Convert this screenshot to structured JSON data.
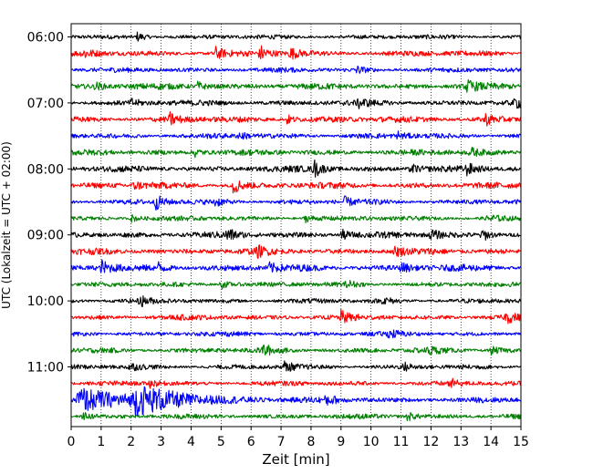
{
  "chart_data": {
    "type": "line",
    "title": "",
    "xlabel": "Zeit  [min]",
    "ylabel": "UTC (Lokalzeit = UTC + 02:00)",
    "xlim": [
      0,
      15
    ],
    "x_ticks": [
      "0",
      "1",
      "2",
      "3",
      "4",
      "5",
      "6",
      "7",
      "8",
      "9",
      "10",
      "11",
      "12",
      "13",
      "14",
      "15"
    ],
    "y_tick_labels": [
      "06:00",
      "07:00",
      "08:00",
      "09:00",
      "10:00",
      "11:00"
    ],
    "grid": "vertical dotted",
    "trace_interval_minutes": 15,
    "traces": [
      {
        "start": "06:00",
        "color": "#000000",
        "amp": 2.0,
        "events": [
          {
            "t": 2.2,
            "a": 5
          }
        ]
      },
      {
        "start": "06:15",
        "color": "#ff0000",
        "amp": 2.6,
        "events": [
          {
            "t": 0.4,
            "a": 5
          },
          {
            "t": 4.8,
            "a": 7
          },
          {
            "t": 6.3,
            "a": 8
          },
          {
            "t": 7.3,
            "a": 6
          }
        ]
      },
      {
        "start": "06:30",
        "color": "#0000ff",
        "amp": 2.2,
        "events": [
          {
            "t": 9.5,
            "a": 4
          }
        ]
      },
      {
        "start": "06:45",
        "color": "#008000",
        "amp": 2.8,
        "events": [
          {
            "t": 0.8,
            "a": 4
          },
          {
            "t": 4.2,
            "a": 5
          },
          {
            "t": 13.2,
            "a": 6
          }
        ]
      },
      {
        "start": "07:00",
        "color": "#000000",
        "amp": 2.6,
        "events": [
          {
            "t": 2.0,
            "a": 4
          },
          {
            "t": 9.6,
            "a": 4
          },
          {
            "t": 14.8,
            "a": 5
          }
        ]
      },
      {
        "start": "07:15",
        "color": "#ff0000",
        "amp": 2.8,
        "events": [
          {
            "t": 3.3,
            "a": 6
          },
          {
            "t": 7.2,
            "a": 5
          },
          {
            "t": 13.8,
            "a": 6
          }
        ]
      },
      {
        "start": "07:30",
        "color": "#0000ff",
        "amp": 2.4,
        "events": [
          {
            "t": 5.6,
            "a": 4
          },
          {
            "t": 10.9,
            "a": 4
          }
        ]
      },
      {
        "start": "07:45",
        "color": "#008000",
        "amp": 2.6,
        "events": [
          {
            "t": 4.1,
            "a": 5
          },
          {
            "t": 13.3,
            "a": 5
          }
        ]
      },
      {
        "start": "08:00",
        "color": "#000000",
        "amp": 2.8,
        "events": [
          {
            "t": 8.1,
            "a": 9
          },
          {
            "t": 11.3,
            "a": 6
          },
          {
            "t": 13.2,
            "a": 5
          }
        ]
      },
      {
        "start": "08:15",
        "color": "#ff0000",
        "amp": 2.8,
        "events": [
          {
            "t": 5.4,
            "a": 9
          },
          {
            "t": 2.1,
            "a": 4
          }
        ]
      },
      {
        "start": "08:30",
        "color": "#0000ff",
        "amp": 2.4,
        "events": [
          {
            "t": 2.8,
            "a": 8
          },
          {
            "t": 9.1,
            "a": 5
          },
          {
            "t": 4.8,
            "a": 4
          }
        ]
      },
      {
        "start": "08:45",
        "color": "#008000",
        "amp": 2.2,
        "events": [
          {
            "t": 2.0,
            "a": 4
          },
          {
            "t": 7.8,
            "a": 4
          },
          {
            "t": 13.9,
            "a": 5
          }
        ]
      },
      {
        "start": "09:00",
        "color": "#000000",
        "amp": 2.8,
        "events": [
          {
            "t": 5.2,
            "a": 6
          },
          {
            "t": 9.0,
            "a": 6
          },
          {
            "t": 12.0,
            "a": 6
          },
          {
            "t": 13.7,
            "a": 7
          }
        ]
      },
      {
        "start": "09:15",
        "color": "#ff0000",
        "amp": 2.8,
        "events": [
          {
            "t": 6.2,
            "a": 5
          },
          {
            "t": 10.8,
            "a": 5
          }
        ]
      },
      {
        "start": "09:30",
        "color": "#0000ff",
        "amp": 3.0,
        "events": [
          {
            "t": 1.0,
            "a": 8
          },
          {
            "t": 2.9,
            "a": 6
          },
          {
            "t": 6.6,
            "a": 5
          },
          {
            "t": 11.0,
            "a": 5
          }
        ]
      },
      {
        "start": "09:45",
        "color": "#008000",
        "amp": 2.2,
        "events": [
          {
            "t": 5.0,
            "a": 5
          },
          {
            "t": 9.2,
            "a": 4
          }
        ]
      },
      {
        "start": "10:00",
        "color": "#000000",
        "amp": 2.2,
        "events": [
          {
            "t": 2.3,
            "a": 5
          },
          {
            "t": 10.4,
            "a": 4
          }
        ]
      },
      {
        "start": "10:15",
        "color": "#ff0000",
        "amp": 2.4,
        "events": [
          {
            "t": 9.0,
            "a": 6
          },
          {
            "t": 14.5,
            "a": 6
          }
        ]
      },
      {
        "start": "10:30",
        "color": "#0000ff",
        "amp": 2.2,
        "events": [
          {
            "t": 10.6,
            "a": 4
          }
        ]
      },
      {
        "start": "10:45",
        "color": "#008000",
        "amp": 2.4,
        "events": [
          {
            "t": 6.4,
            "a": 6
          },
          {
            "t": 11.9,
            "a": 4
          },
          {
            "t": 14.0,
            "a": 4
          }
        ]
      },
      {
        "start": "11:00",
        "color": "#000000",
        "amp": 2.2,
        "events": [
          {
            "t": 1.9,
            "a": 5
          },
          {
            "t": 7.1,
            "a": 6
          },
          {
            "t": 11.1,
            "a": 4
          }
        ]
      },
      {
        "start": "11:15",
        "color": "#ff0000",
        "amp": 2.2,
        "events": [
          {
            "t": 2.6,
            "a": 5
          },
          {
            "t": 12.6,
            "a": 5
          }
        ]
      },
      {
        "start": "11:30",
        "color": "#0000ff",
        "amp": 2.4,
        "events": [
          {
            "t": 0.2,
            "a": 14
          },
          {
            "t": 2.1,
            "a": 12
          },
          {
            "t": 8.5,
            "a": 5
          }
        ]
      },
      {
        "start": "11:45",
        "color": "#008000",
        "amp": 2.2,
        "events": [
          {
            "t": 0.4,
            "a": 5
          },
          {
            "t": 11.2,
            "a": 5
          }
        ]
      }
    ]
  }
}
